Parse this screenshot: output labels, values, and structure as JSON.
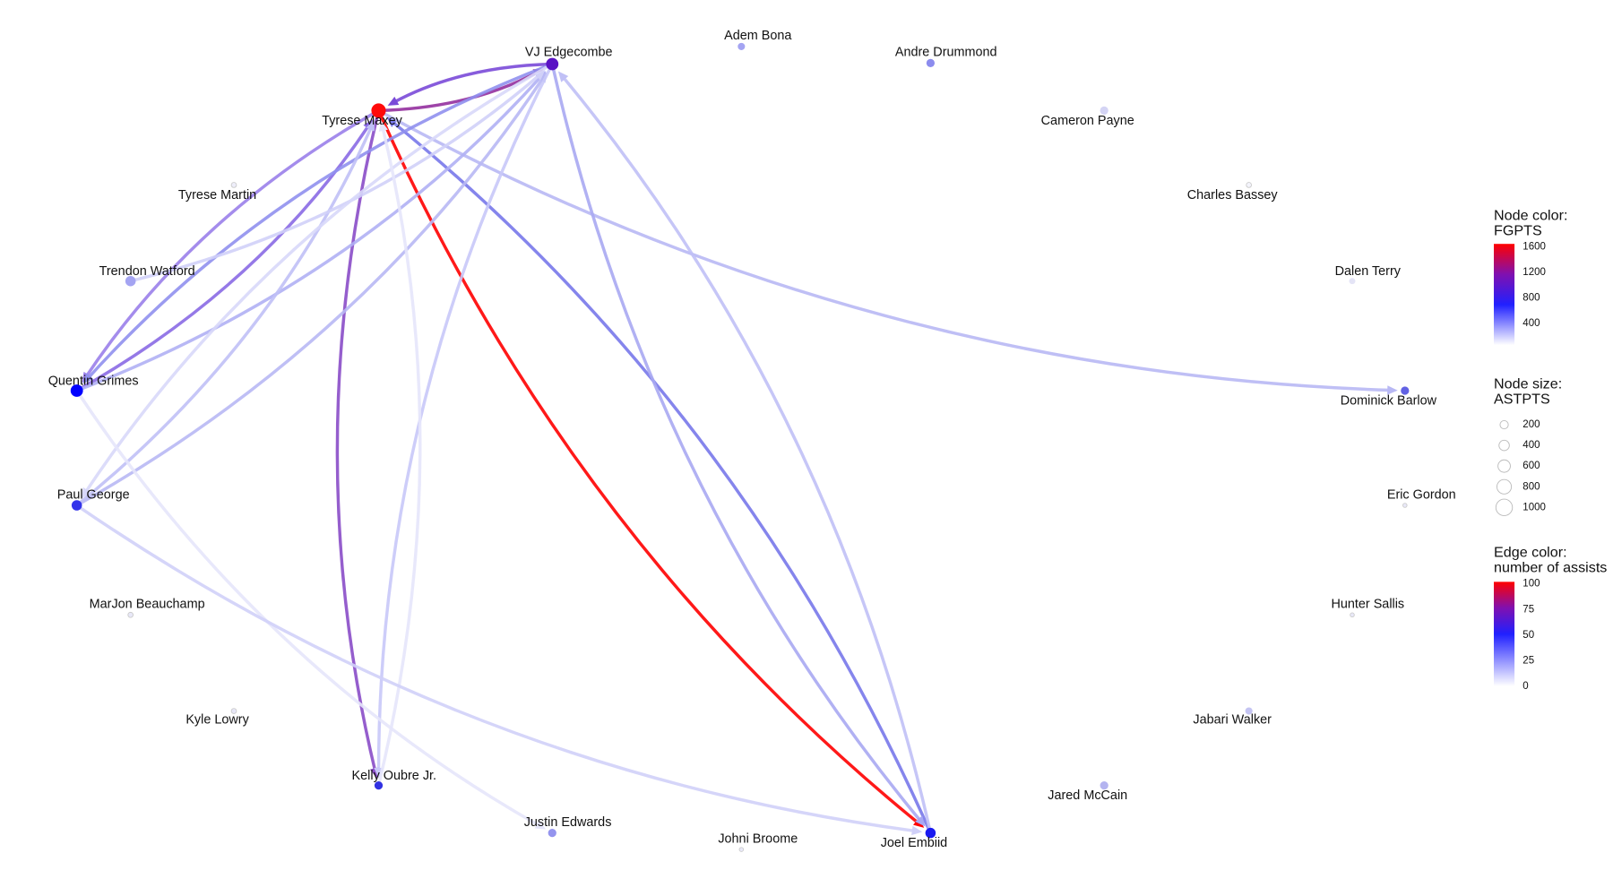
{
  "nodes": [
    {
      "label": "Tyrese Maxey",
      "color": "#ff0a0a"
    },
    {
      "label": "VJ Edgecombe",
      "color": "#5a12c4"
    },
    {
      "label": "Adem Bona",
      "color": "#a4a4f2"
    },
    {
      "label": "Andre Drummond",
      "color": "#8c8cee"
    },
    {
      "label": "Cameron Payne",
      "color": "#d4d4f4"
    },
    {
      "label": "Charles Bassey",
      "color": "#f4f4fc"
    },
    {
      "label": "Dalen Terry",
      "color": "#e4e4f6"
    },
    {
      "label": "Dominick Barlow",
      "color": "#6262e4"
    },
    {
      "label": "Eric Gordon",
      "color": "#e8e8f8"
    },
    {
      "label": "Hunter Sallis",
      "color": "#e8e8f8"
    },
    {
      "label": "Jabari Walker",
      "color": "#c4c4f2"
    },
    {
      "label": "Jared McCain",
      "color": "#b4b4f0"
    },
    {
      "label": "Joel Embiid",
      "color": "#1a1af0"
    },
    {
      "label": "Johni Broome",
      "color": "#e8e8f8"
    },
    {
      "label": "Justin Edwards",
      "color": "#9494ee"
    },
    {
      "label": "Kelly Oubre Jr.",
      "color": "#3232e2"
    },
    {
      "label": "Kyle Lowry",
      "color": "#e8e8f8"
    },
    {
      "label": "MarJon Beauchamp",
      "color": "#e8e8f8"
    },
    {
      "label": "Paul George",
      "color": "#3434ea"
    },
    {
      "label": "Quentin Grimes",
      "color": "#0000ff"
    },
    {
      "label": "Trendon Watford",
      "color": "#a4a4f2"
    },
    {
      "label": "Tyrese Martin",
      "color": "#eeeefa"
    }
  ],
  "edges": [
    {
      "from": 0,
      "to": 1,
      "color": "#93309f"
    },
    {
      "from": 1,
      "to": 0,
      "color": "#7a4ad8"
    },
    {
      "from": 0,
      "to": 12,
      "color": "#ff0000"
    },
    {
      "from": 0,
      "to": 15,
      "color": "#8a4cc8"
    },
    {
      "from": 12,
      "to": 0,
      "color": "#7878ea"
    },
    {
      "from": 0,
      "to": 7,
      "color": "#b8b8f4"
    },
    {
      "from": 19,
      "to": 0,
      "color": "#8a6ae4"
    },
    {
      "from": 0,
      "to": 19,
      "color": "#9a80ea"
    },
    {
      "from": 1,
      "to": 19,
      "color": "#9090ee"
    },
    {
      "from": 19,
      "to": 1,
      "color": "#b0b0f4"
    },
    {
      "from": 18,
      "to": 1,
      "color": "#b8b8f4"
    },
    {
      "from": 18,
      "to": 0,
      "color": "#c0c0f6"
    },
    {
      "from": 20,
      "to": 1,
      "color": "#d0d0f8"
    },
    {
      "from": 1,
      "to": 18,
      "color": "#d8d8fa"
    },
    {
      "from": 1,
      "to": 12,
      "color": "#a8a8f2"
    },
    {
      "from": 12,
      "to": 1,
      "color": "#c0c0f6"
    },
    {
      "from": 1,
      "to": 15,
      "color": "#c8c8f8"
    },
    {
      "from": 15,
      "to": 0,
      "color": "#e6e6fb"
    },
    {
      "from": 19,
      "to": 14,
      "color": "#e6e6fb"
    },
    {
      "from": 18,
      "to": 12,
      "color": "#d0d0f8"
    }
  ],
  "legend": {
    "node_color": {
      "title": [
        "Node color:",
        "FGPTS"
      ],
      "ticks": [
        1600,
        1200,
        800,
        400
      ]
    },
    "node_size": {
      "title": [
        "Node size:",
        "ASTPTS"
      ],
      "ticks": [
        200,
        400,
        600,
        800,
        1000
      ]
    },
    "edge_color": {
      "title": [
        "Edge color:",
        "number of assists"
      ],
      "ticks": [
        100,
        75,
        50,
        25,
        0
      ]
    }
  }
}
